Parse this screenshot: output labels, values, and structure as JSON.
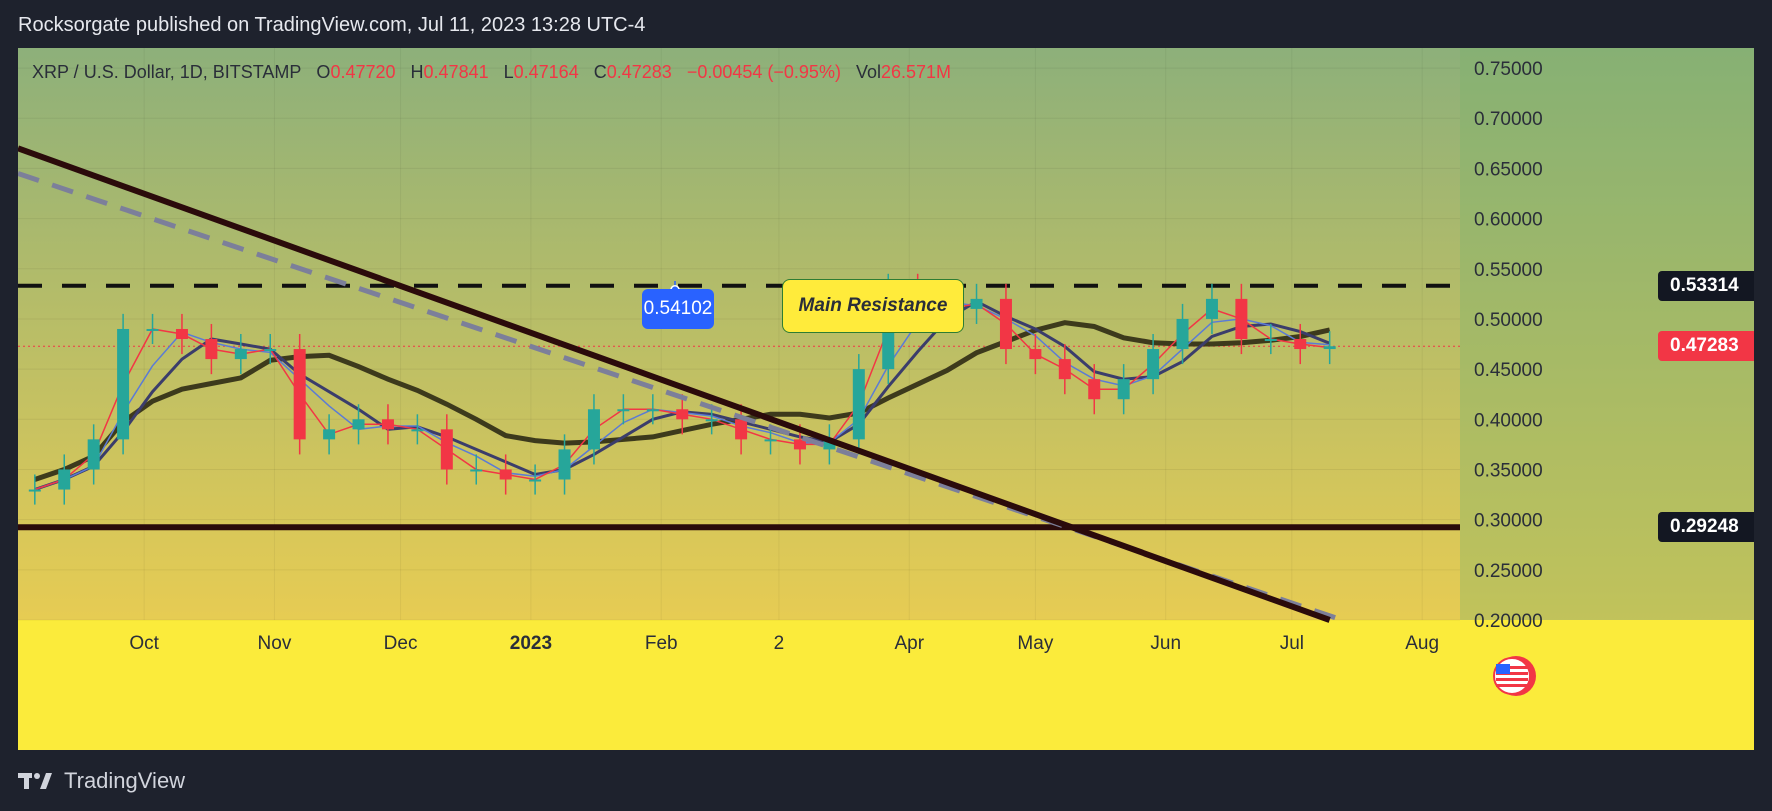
{
  "header": {
    "published": "Rocksorgate published on TradingView.com, Jul 11, 2023 13:28 UTC-4"
  },
  "legend": {
    "symbol": "XRP / U.S. Dollar, 1D, BITSTAMP",
    "o_label": "O",
    "o_value": "0.47720",
    "h_label": "H",
    "h_value": "0.47841",
    "l_label": "L",
    "l_value": "0.47164",
    "c_label": "C",
    "c_value": "0.47283",
    "change": "−0.00454 (−0.95%)",
    "vol_label": "Vol",
    "vol_value": "26.571M"
  },
  "callouts": {
    "price": "0.54102",
    "main_resistance": "Main Resistance"
  },
  "price_tags": {
    "resistance": "0.53314",
    "last": "0.47283",
    "support": "0.29248"
  },
  "footer": {
    "brand": "TradingView"
  },
  "colors": {
    "bullish": "#26a69a",
    "bearish": "#f23645",
    "ma_fast": "#f23645",
    "ma_mid": "#5b7bd5",
    "ma_slow": "#3b3d6b",
    "ma_long": "#3d3a1c",
    "trendline": "#2b0b0b",
    "trendline_dash": "#7c7f9a",
    "background_top": "#8db07a",
    "background_bottom": "#fbd24a"
  },
  "chart_data": {
    "type": "line",
    "title": "XRP / U.S. Dollar, 1D, BITSTAMP",
    "xlabel": "",
    "ylabel": "",
    "ylim": [
      0.2,
      0.77
    ],
    "x_tick_labels": [
      "Oct",
      "Nov",
      "Dec",
      "2023",
      "Feb",
      "2",
      "Apr",
      "May",
      "Jun",
      "Jul",
      "Aug"
    ],
    "y_tick_labels": [
      "0.75000",
      "0.70000",
      "0.65000",
      "0.60000",
      "0.55000",
      "0.50000",
      "0.45000",
      "0.40000",
      "0.35000",
      "0.30000",
      "0.25000",
      "0.20000"
    ],
    "y_ticks": [
      0.75,
      0.7,
      0.65,
      0.6,
      0.55,
      0.5,
      0.45,
      0.4,
      0.35,
      0.3,
      0.25,
      0.2
    ],
    "grid": true,
    "series": [
      {
        "x": [
          "2022-09-05",
          "2022-09-12",
          "2022-09-19",
          "2022-09-26",
          "2022-10-03",
          "2022-10-10",
          "2022-10-17",
          "2022-10-24",
          "2022-10-31",
          "2022-11-07",
          "2022-11-14",
          "2022-11-21",
          "2022-11-28",
          "2022-12-05",
          "2022-12-12",
          "2022-12-19",
          "2022-12-26",
          "2023-01-02",
          "2023-01-09",
          "2023-01-16",
          "2023-01-23",
          "2023-01-30",
          "2023-02-06",
          "2023-02-13",
          "2023-02-20",
          "2023-02-27",
          "2023-03-06",
          "2023-03-13",
          "2023-03-20",
          "2023-03-27",
          "2023-04-03",
          "2023-04-10",
          "2023-04-17",
          "2023-04-24",
          "2023-05-01",
          "2023-05-08",
          "2023-05-15",
          "2023-05-22",
          "2023-05-29",
          "2023-06-05",
          "2023-06-12",
          "2023-06-19",
          "2023-06-26",
          "2023-07-03",
          "2023-07-10"
        ],
        "y": [
          0.33,
          0.35,
          0.38,
          0.49,
          0.49,
          0.48,
          0.46,
          0.47,
          0.47,
          0.38,
          0.39,
          0.4,
          0.39,
          0.39,
          0.35,
          0.35,
          0.34,
          0.34,
          0.37,
          0.41,
          0.41,
          0.41,
          0.4,
          0.4,
          0.38,
          0.38,
          0.37,
          0.38,
          0.45,
          0.53,
          0.51,
          0.51,
          0.52,
          0.47,
          0.46,
          0.44,
          0.42,
          0.44,
          0.47,
          0.5,
          0.52,
          0.48,
          0.48,
          0.47,
          0.4728
        ]
      }
    ],
    "annotations": [
      {
        "type": "horizontal_line",
        "value": 0.53314,
        "style": "dashed"
      },
      {
        "type": "horizontal_line",
        "value": 0.29248,
        "style": "solid"
      },
      {
        "type": "trendline",
        "from": [
          "2022-09-01",
          0.67
        ],
        "to": [
          "2023-07-10",
          0.2
        ]
      },
      {
        "type": "trendline",
        "from": [
          "2022-09-01",
          0.645
        ],
        "to": [
          "2023-07-13",
          0.2
        ],
        "style": "dashed"
      },
      {
        "type": "label",
        "text": "0.54102"
      },
      {
        "type": "label",
        "text": "Main Resistance"
      }
    ]
  }
}
